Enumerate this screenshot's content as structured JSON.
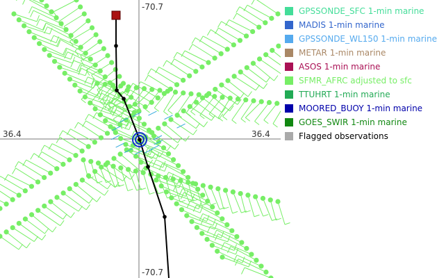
{
  "map": {
    "axis_labels": {
      "lat_left": "36.4",
      "lat_right": "36.4",
      "lon_top": "-70.7",
      "lon_bottom": "-70.7"
    },
    "colors": {
      "obs_green": "#77ee66",
      "track": "#000000",
      "storm_center": "#1133cc",
      "start_marker": "#aa1111"
    },
    "features": {
      "storm_track": "black line with dots",
      "storm_center_icon": "concentric-circles-icon",
      "start_marker_icon": "red-square-icon"
    }
  },
  "legend": {
    "items": [
      {
        "label": "GPSSONDE_SFC 1-min marine",
        "color": "#44dd99"
      },
      {
        "label": "MADIS 1-min marine",
        "color": "#3366cc"
      },
      {
        "label": "GPSSONDE_WL150 1-min marine",
        "color": "#55aaee"
      },
      {
        "label": "METAR 1-min marine",
        "color": "#aa8866"
      },
      {
        "label": "ASOS 1-min marine",
        "color": "#aa1155"
      },
      {
        "label": "SFMR_AFRC adjusted to sfc",
        "color": "#77ee66"
      },
      {
        "label": "TTUHRT 1-min marine",
        "color": "#22aa55"
      },
      {
        "label": "MOORED_BUOY 1-min marine",
        "color": "#0000aa"
      },
      {
        "label": "GOES_SWIR 1-min marine",
        "color": "#118811"
      },
      {
        "label": "Flagged observations",
        "color": "#aaaaaa"
      }
    ]
  }
}
